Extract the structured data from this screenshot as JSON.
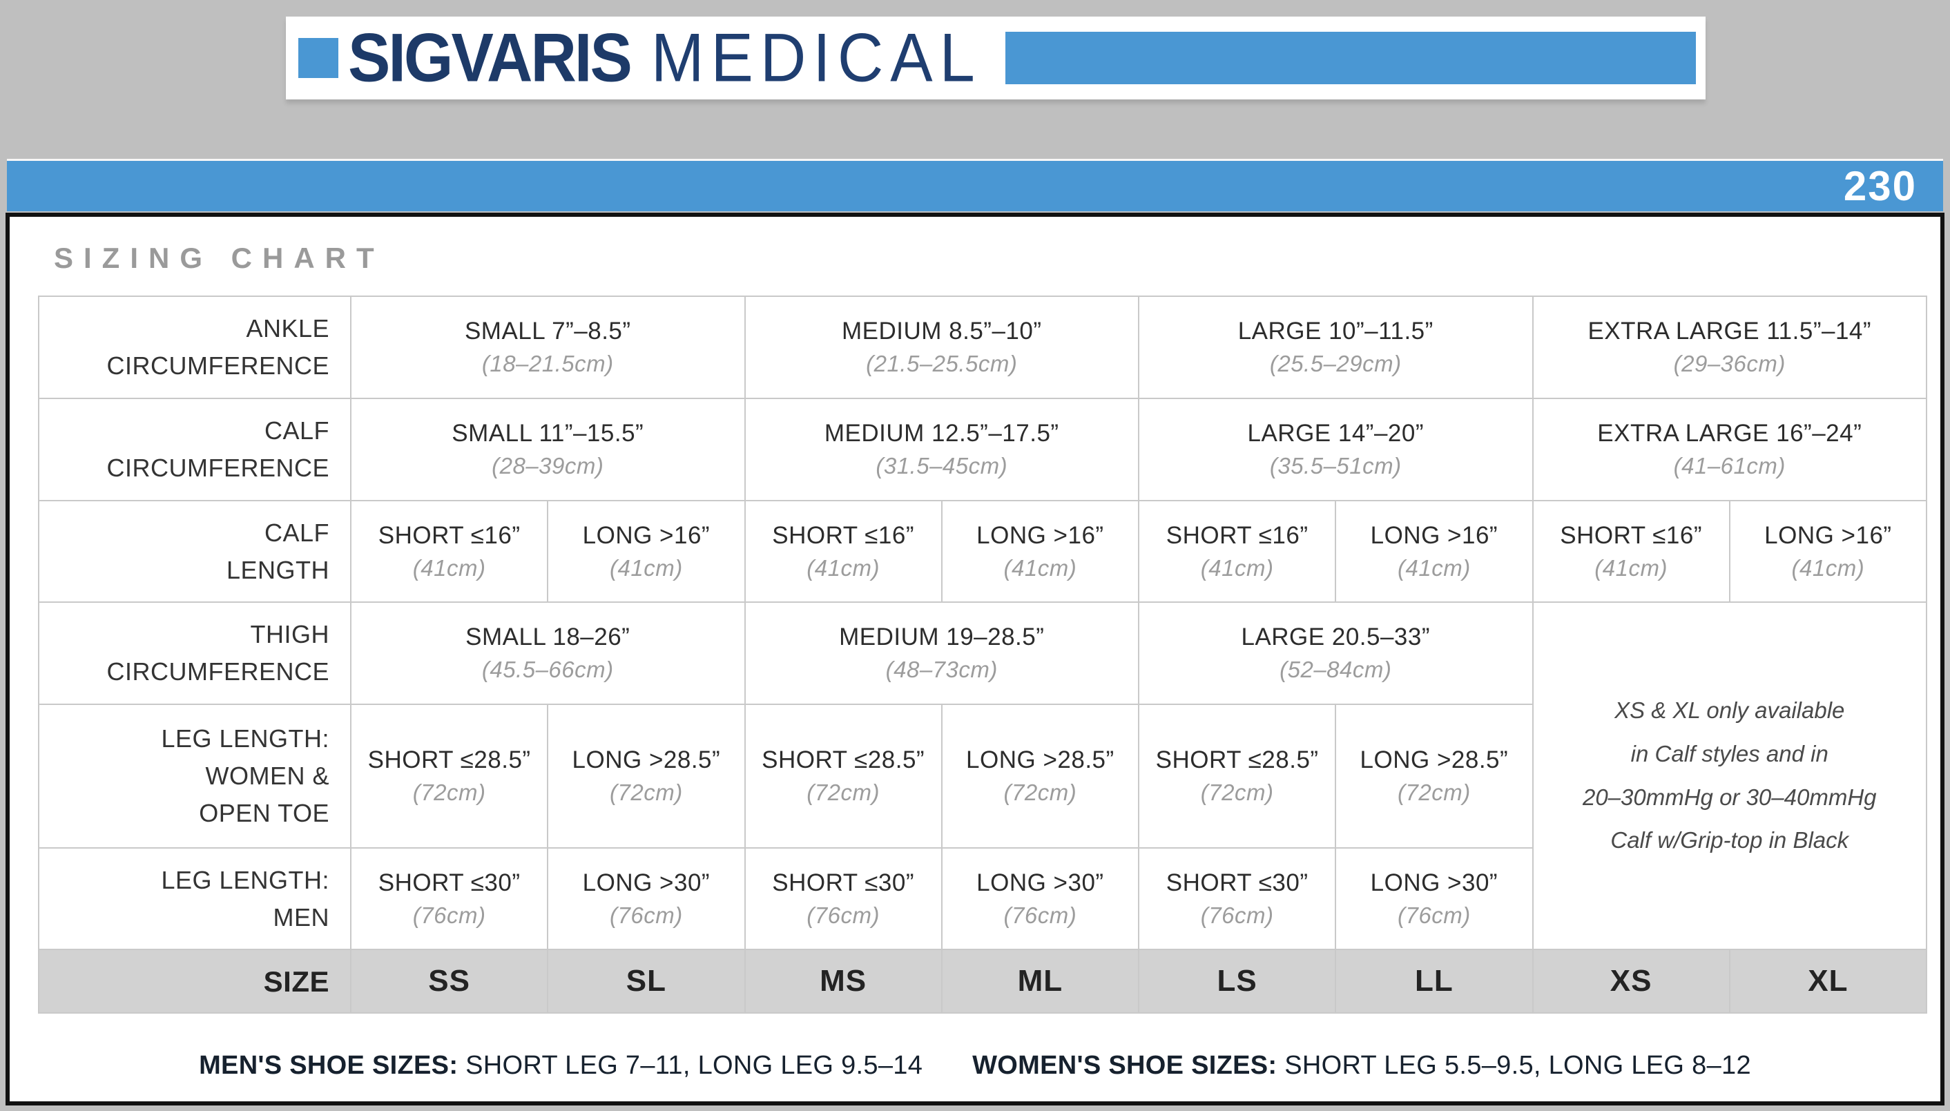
{
  "logo": {
    "brand": "SIGVARIS",
    "division": "MEDICAL"
  },
  "banner": {
    "page_number": "230"
  },
  "chart": {
    "title": "SIZING CHART",
    "rows": {
      "ankle": {
        "label": [
          "ANKLE",
          "CIRCUMFERENCE"
        ],
        "cells": [
          {
            "in": "SMALL 7”–8.5”",
            "cm": "(18–21.5cm)"
          },
          {
            "in": "MEDIUM 8.5”–10”",
            "cm": "(21.5–25.5cm)"
          },
          {
            "in": "LARGE 10”–11.5”",
            "cm": "(25.5–29cm)"
          },
          {
            "in": "EXTRA LARGE 11.5”–14”",
            "cm": "(29–36cm)"
          }
        ]
      },
      "calf": {
        "label": [
          "CALF",
          "CIRCUMFERENCE"
        ],
        "cells": [
          {
            "in": "SMALL 11”–15.5”",
            "cm": "(28–39cm)"
          },
          {
            "in": "MEDIUM 12.5”–17.5”",
            "cm": "(31.5–45cm)"
          },
          {
            "in": "LARGE 14”–20”",
            "cm": "(35.5–51cm)"
          },
          {
            "in": "EXTRA LARGE 16”–24”",
            "cm": "(41–61cm)"
          }
        ]
      },
      "calf_length": {
        "label": [
          "CALF",
          "LENGTH"
        ],
        "cells": [
          {
            "in": "SHORT ≤16”",
            "cm": "(41cm)"
          },
          {
            "in": "LONG >16”",
            "cm": "(41cm)"
          },
          {
            "in": "SHORT ≤16”",
            "cm": "(41cm)"
          },
          {
            "in": "LONG >16”",
            "cm": "(41cm)"
          },
          {
            "in": "SHORT ≤16”",
            "cm": "(41cm)"
          },
          {
            "in": "LONG >16”",
            "cm": "(41cm)"
          },
          {
            "in": "SHORT ≤16”",
            "cm": "(41cm)"
          },
          {
            "in": "LONG >16”",
            "cm": "(41cm)"
          }
        ]
      },
      "thigh": {
        "label": [
          "THIGH",
          "CIRCUMFERENCE"
        ],
        "cells": [
          {
            "in": "SMALL 18–26”",
            "cm": "(45.5–66cm)"
          },
          {
            "in": "MEDIUM 19–28.5”",
            "cm": "(48–73cm)"
          },
          {
            "in": "LARGE 20.5–33”",
            "cm": "(52–84cm)"
          }
        ]
      },
      "leg_women": {
        "label": [
          "LEG LENGTH:",
          "WOMEN &",
          "OPEN TOE"
        ],
        "cells": [
          {
            "in": "SHORT ≤28.5”",
            "cm": "(72cm)"
          },
          {
            "in": "LONG >28.5”",
            "cm": "(72cm)"
          },
          {
            "in": "SHORT ≤28.5”",
            "cm": "(72cm)"
          },
          {
            "in": "LONG >28.5”",
            "cm": "(72cm)"
          },
          {
            "in": "SHORT ≤28.5”",
            "cm": "(72cm)"
          },
          {
            "in": "LONG >28.5”",
            "cm": "(72cm)"
          }
        ]
      },
      "leg_men": {
        "label": [
          "LEG LENGTH:",
          "MEN"
        ],
        "cells": [
          {
            "in": "SHORT ≤30”",
            "cm": "(76cm)"
          },
          {
            "in": "LONG >30”",
            "cm": "(76cm)"
          },
          {
            "in": "SHORT ≤30”",
            "cm": "(76cm)"
          },
          {
            "in": "LONG >30”",
            "cm": "(76cm)"
          },
          {
            "in": "SHORT ≤30”",
            "cm": "(76cm)"
          },
          {
            "in": "LONG >30”",
            "cm": "(76cm)"
          }
        ]
      },
      "size": {
        "label": "SIZE",
        "values": [
          "SS",
          "SL",
          "MS",
          "ML",
          "LS",
          "LL",
          "XS",
          "XL"
        ]
      }
    },
    "note": {
      "lines": [
        "XS & XL only available",
        "in Calf styles and in",
        "20–30mmHg or 30–40mmHg",
        "Calf w/Grip-top in Black"
      ]
    },
    "footer": {
      "men_label": "MEN'S SHOE SIZES:",
      "men_value": "SHORT LEG 7–11, LONG LEG 9.5–14",
      "women_label": "WOMEN'S SHOE SIZES:",
      "women_value": "SHORT LEG 5.5–9.5, LONG LEG 8–12"
    }
  },
  "colors": {
    "accent_blue": "#4a97d3",
    "brand_navy": "#1d3a68",
    "page_background": "#bfbfbf",
    "grid_line": "#c9c9c9",
    "size_row_background": "#d2d2d2"
  }
}
